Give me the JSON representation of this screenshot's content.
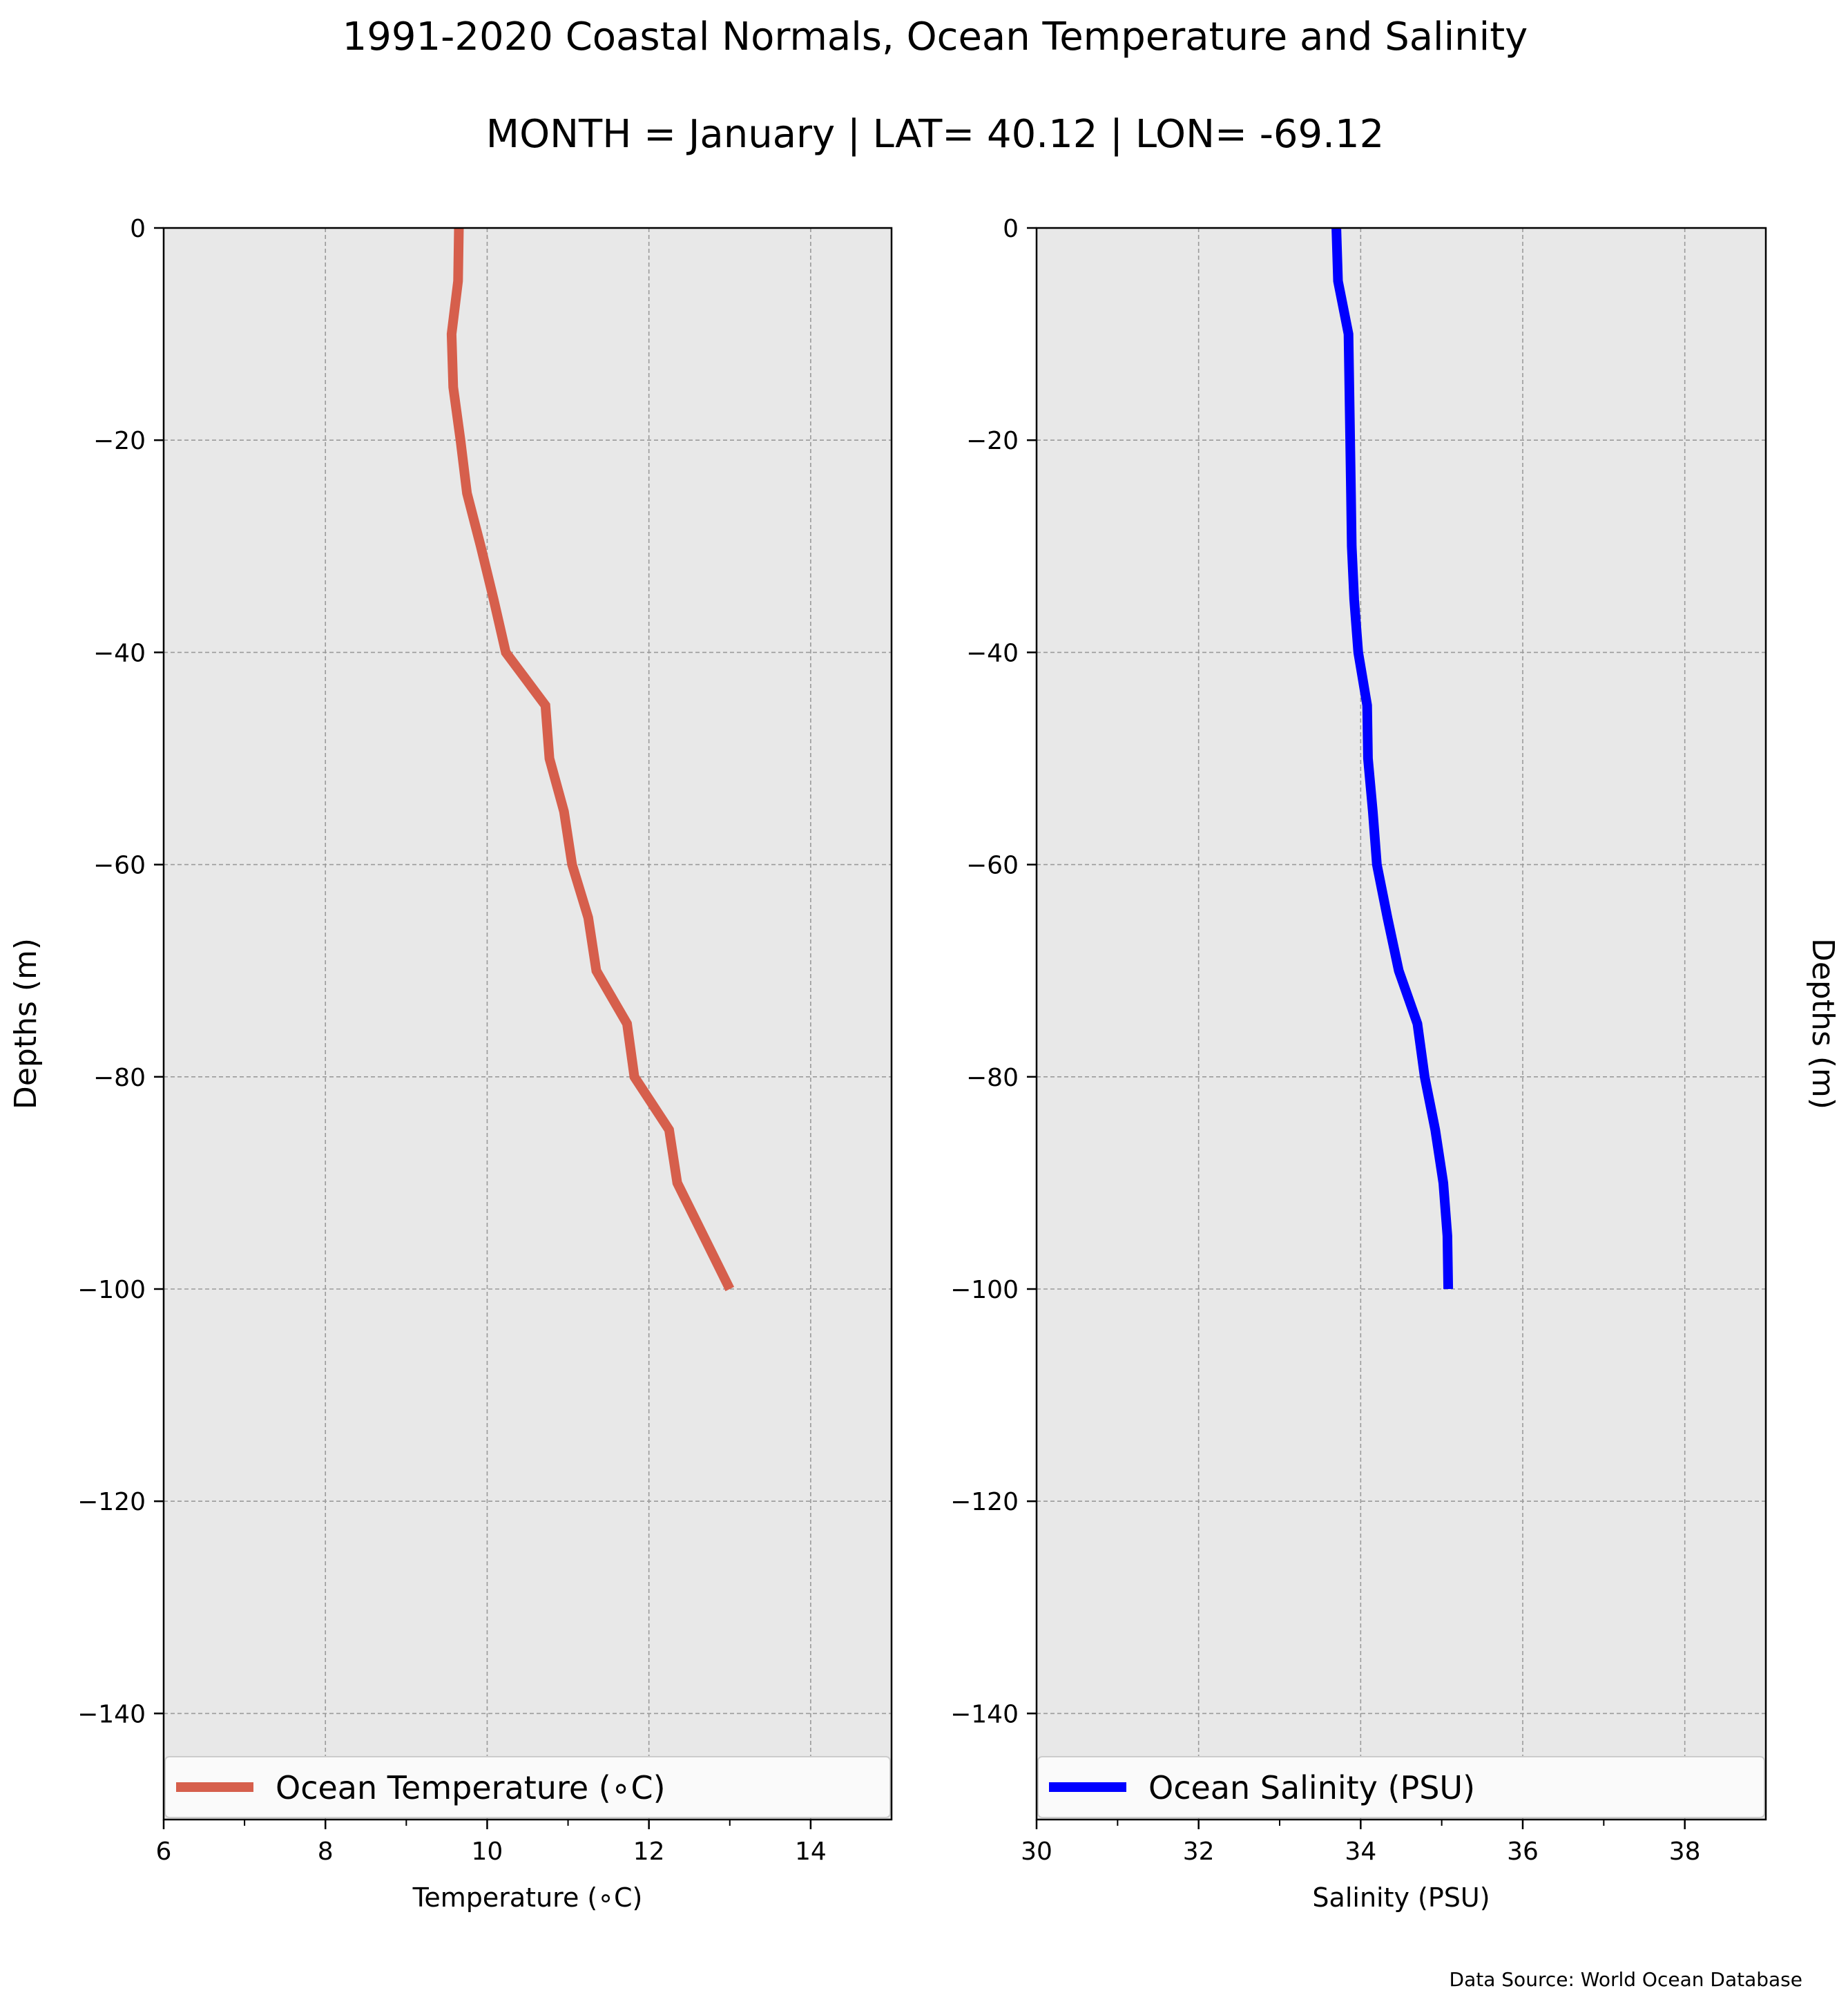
{
  "figure": {
    "title": "1991-2020 Coastal Normals, Ocean Temperature and Salinity",
    "subtitle": "MONTH = January | LAT= 40.12 | LON= -69.12",
    "source": "Data Source: World Ocean Database",
    "background": "#ffffff",
    "axes_background": "#e8e8e8"
  },
  "chart_data": [
    {
      "type": "line",
      "xlabel": "Temperature ($^\\circ$C)",
      "xlabel_display": "Temperature (∘C)",
      "ylabel": "Depths (m)",
      "ylabel_side": "left",
      "xlim": [
        6,
        15
      ],
      "ylim": [
        -150,
        0
      ],
      "xticks": [
        6,
        8,
        10,
        12,
        14
      ],
      "yticks": [
        0,
        -20,
        -40,
        -60,
        -80,
        -100,
        -120,
        -140
      ],
      "grid": true,
      "legend_position": "lower-center",
      "series": [
        {
          "name": "Ocean Temperature (∘C)",
          "color": "#d65f4c",
          "x": [
            9.65,
            9.64,
            9.56,
            9.58,
            9.67,
            9.75,
            9.92,
            10.08,
            10.23,
            10.72,
            10.77,
            10.95,
            11.05,
            11.25,
            11.35,
            11.73,
            11.82,
            12.25,
            12.35,
            13.0
          ],
          "y": [
            0,
            -5,
            -10,
            -15,
            -20,
            -25,
            -30,
            -35,
            -40,
            -45,
            -50,
            -55,
            -60,
            -65,
            -70,
            -75,
            -80,
            -85,
            -90,
            -100
          ]
        }
      ]
    },
    {
      "type": "line",
      "xlabel": "Salinity (PSU)",
      "ylabel": "Depths (m)",
      "ylabel_side": "right",
      "xlim": [
        30,
        39
      ],
      "ylim": [
        -150,
        0
      ],
      "xticks": [
        30,
        32,
        34,
        36,
        38
      ],
      "yticks": [
        0,
        -20,
        -40,
        -60,
        -80,
        -100,
        -120,
        -140
      ],
      "grid": true,
      "legend_position": "lower-center",
      "series": [
        {
          "name": "Ocean Salinity (PSU)",
          "color": "#0000ff",
          "x": [
            33.7,
            33.72,
            33.85,
            33.86,
            33.87,
            33.88,
            33.89,
            33.92,
            33.97,
            34.08,
            34.09,
            34.15,
            34.2,
            34.33,
            34.47,
            34.7,
            34.79,
            34.92,
            35.02,
            35.07,
            35.08
          ],
          "y": [
            0,
            -5,
            -10,
            -15,
            -20,
            -25,
            -30,
            -35,
            -40,
            -45,
            -50,
            -55,
            -60,
            -65,
            -70,
            -75,
            -80,
            -85,
            -90,
            -95,
            -100
          ]
        }
      ]
    }
  ]
}
